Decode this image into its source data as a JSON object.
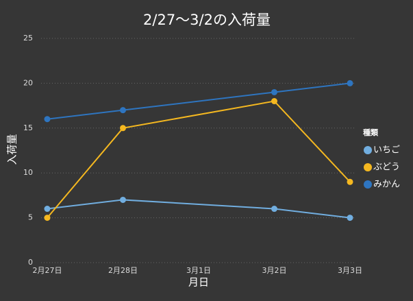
{
  "chart_data": {
    "type": "line",
    "title": "2/27〜3/2の入荷量",
    "x_label": "月日",
    "y_label": "入荷量",
    "xticks": [
      "2月27日",
      "2月28日",
      "3月1日",
      "3月2日",
      "3月3日"
    ],
    "x": [
      "2月27日",
      "2月28日",
      "3月2日",
      "3月3日"
    ],
    "series": [
      {
        "name": "いちご",
        "color": "#71aee0",
        "values": [
          6,
          7,
          6,
          5
        ]
      },
      {
        "name": "ぶどう",
        "color": "#f5b820",
        "values": [
          5,
          15,
          18,
          9
        ]
      },
      {
        "name": "みかん",
        "color": "#2e75c0",
        "values": [
          16,
          17,
          19,
          20
        ]
      }
    ],
    "legend_title": "種類",
    "legend": "right",
    "ylim": [
      0,
      25
    ],
    "yticks": [
      0,
      5,
      10,
      15,
      20,
      25
    ],
    "grid": true
  }
}
